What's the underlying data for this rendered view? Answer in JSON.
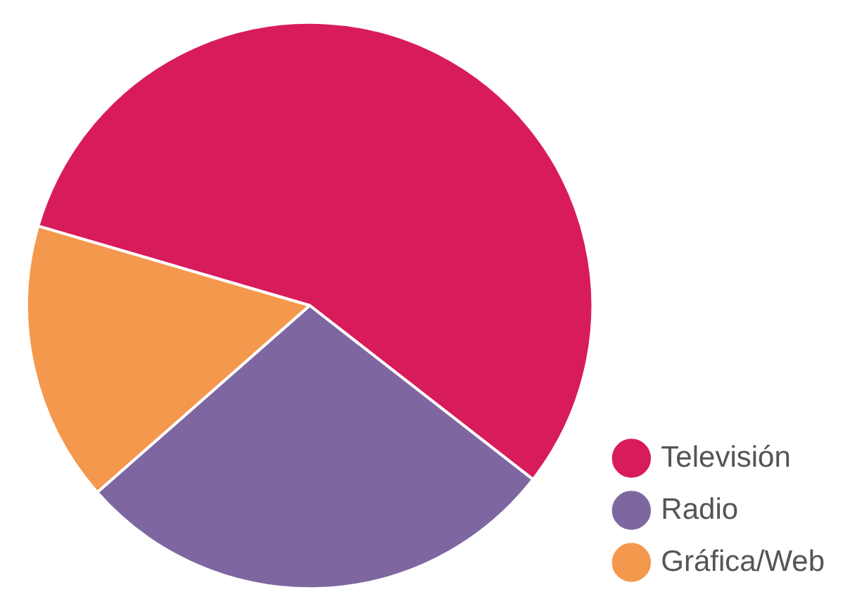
{
  "chart_data": {
    "type": "pie",
    "categories": [
      "Televisión",
      "Radio",
      "Gráfica/Web"
    ],
    "values": [
      56,
      28,
      16
    ],
    "colors": [
      "#d81c5b",
      "#7e67a1",
      "#f4984e"
    ],
    "legend": "bottom right"
  }
}
